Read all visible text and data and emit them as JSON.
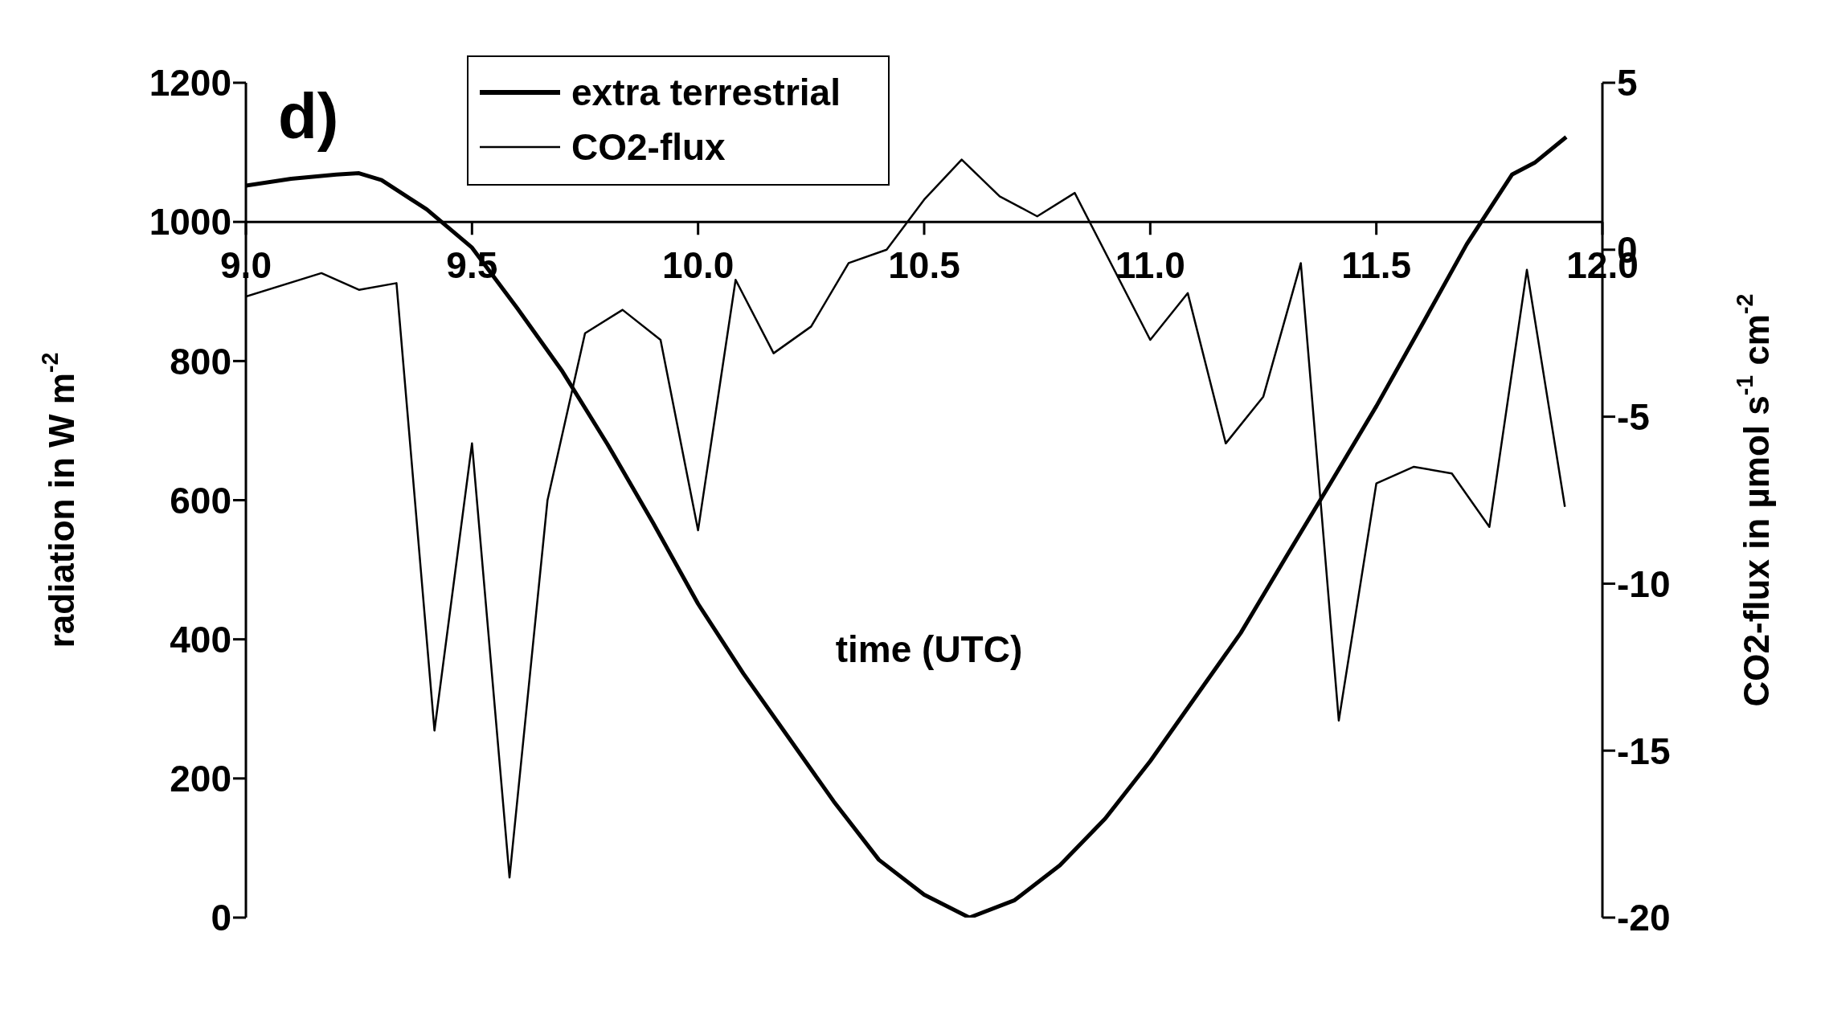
{
  "chart_data": {
    "type": "line",
    "xlabel": "time (UTC)",
    "ylabel": "radiation in W m$^{-2}$",
    "y2label": "CO2-flux in µmol s$^{-1}$ cm$^{-2}$",
    "annotations": [
      "d)"
    ],
    "series": [
      {
        "name": "extra terrestrial",
        "color": "#000000",
        "x": [
          9.0,
          9.1,
          9.2,
          9.25,
          9.3,
          9.4,
          9.5,
          9.6,
          9.7,
          9.8,
          9.9,
          10.0,
          10.1,
          10.2,
          10.3,
          10.4,
          10.5,
          10.6,
          10.7,
          10.8,
          10.9,
          11.0,
          11.1,
          11.2,
          11.3,
          11.4,
          11.5,
          11.6,
          11.7,
          11.8,
          11.85,
          11.92
        ],
        "values": [
          1052,
          1062,
          1068,
          1070,
          1060,
          1018,
          963,
          876,
          785,
          680,
          568,
          451,
          351,
          259,
          167,
          83,
          33,
          0,
          25,
          75,
          142,
          225,
          317,
          409,
          518,
          626,
          735,
          851,
          968,
          1068,
          1085,
          1122
        ]
      },
      {
        "name": "CO2-flux",
        "color": "#000000",
        "axis": "y2",
        "x": [
          9.0,
          9.167,
          9.25,
          9.333,
          9.417,
          9.5,
          9.583,
          9.667,
          9.75,
          9.833,
          9.917,
          10.0,
          10.083,
          10.167,
          10.25,
          10.333,
          10.417,
          10.5,
          10.583,
          10.667,
          10.75,
          10.833,
          11.0,
          11.083,
          11.167,
          11.25,
          11.333,
          11.417,
          11.5,
          11.583,
          11.667,
          11.75,
          11.833,
          11.917
        ],
        "values": [
          -1.4,
          -0.7,
          -1.2,
          -1.0,
          -14.4,
          -5.8,
          -18.8,
          -7.5,
          -2.5,
          -1.8,
          -2.7,
          -8.4,
          -0.9,
          -3.1,
          -2.3,
          -0.4,
          0.0,
          1.5,
          2.7,
          1.6,
          1.0,
          1.7,
          -2.7,
          -1.3,
          -5.8,
          -4.4,
          -0.4,
          -14.1,
          -7.0,
          -6.5,
          -6.7,
          -8.3,
          -0.6,
          -7.7
        ]
      }
    ],
    "xlim": [
      9,
      12
    ],
    "xticks": [
      {
        "value": 9,
        "label": "9.0"
      },
      {
        "value": 9.5,
        "label": "9.5"
      },
      {
        "value": 10,
        "label": "10.0"
      },
      {
        "value": 10.5,
        "label": "10.5"
      },
      {
        "value": 11,
        "label": "11.0"
      },
      {
        "value": 11.5,
        "label": "11.5"
      },
      {
        "value": 12,
        "label": "12.0"
      }
    ],
    "ylim": [
      0,
      1200
    ],
    "yticks": [
      0,
      200,
      400,
      600,
      800,
      1000,
      1200
    ],
    "y2lim": [
      -20,
      5
    ],
    "y2ticks": [
      -20,
      -15,
      -10,
      -5,
      0,
      5
    ],
    "legend": "top left"
  }
}
